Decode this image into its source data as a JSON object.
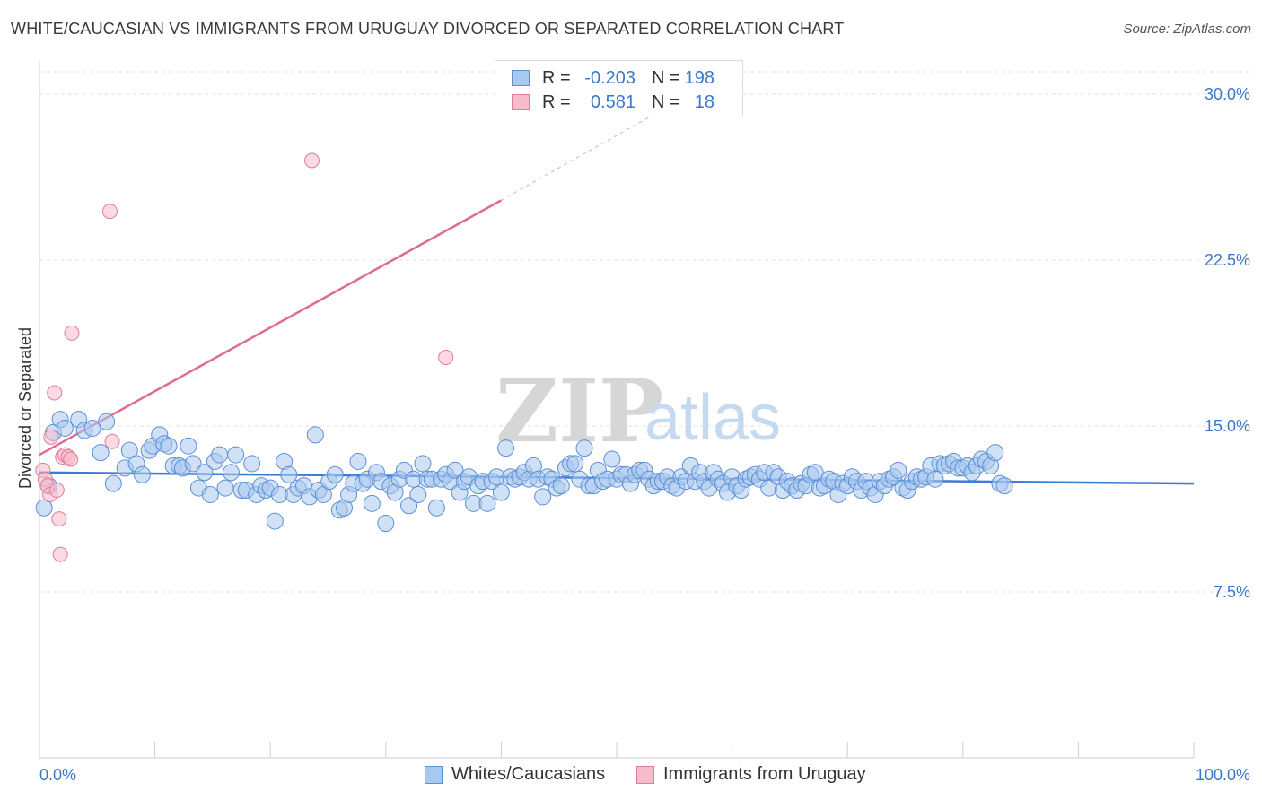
{
  "header": {
    "title": "WHITE/CAUCASIAN VS IMMIGRANTS FROM URUGUAY DIVORCED OR SEPARATED CORRELATION CHART",
    "source": "Source: ZipAtlas.com"
  },
  "watermark": {
    "zip": "ZIP",
    "atlas": "atlas"
  },
  "legend": {
    "rows": [
      {
        "r_label": "R =",
        "r_value": "-0.203",
        "n_label": "N =",
        "n_value": "198",
        "color": "#a9c8ee",
        "border": "#5b8fd6"
      },
      {
        "r_label": "R =",
        "r_value": "0.581",
        "n_label": "N =",
        "n_value": "18",
        "color": "#f7bccb",
        "border": "#e07d9a"
      }
    ]
  },
  "bottom_legend": {
    "items": [
      {
        "label": "Whites/Caucasians",
        "color": "#a9c8ee",
        "border": "#5b8fd6"
      },
      {
        "label": "Immigrants from Uruguay",
        "color": "#f7bccb",
        "border": "#e07d9a"
      }
    ]
  },
  "chart_data": {
    "type": "scatter",
    "title": "WHITE/CAUCASIAN VS IMMIGRANTS FROM URUGUAY DIVORCED OR SEPARATED CORRELATION CHART",
    "xlabel": "",
    "ylabel": "Divorced or Separated",
    "xlim": [
      0,
      100
    ],
    "ylim": [
      0,
      31.5
    ],
    "x_tick_labels": [
      "0.0%",
      "100.0%"
    ],
    "y_ticks": [
      7.5,
      15.0,
      22.5,
      30.0
    ],
    "y_tick_labels": [
      "7.5%",
      "15.0%",
      "22.5%",
      "30.0%"
    ],
    "grid": true,
    "series": [
      {
        "name": "Whites/Caucasians",
        "color": "#a9c8ee",
        "border": "#5b8fd6",
        "trend": {
          "x0": 0,
          "y0": 12.9,
          "x1": 100,
          "y1": 12.4,
          "color": "#3a7bd5"
        },
        "points": [
          [
            0.4,
            11.3
          ],
          [
            0.8,
            12.3
          ],
          [
            1.2,
            14.7
          ],
          [
            1.8,
            15.3
          ],
          [
            2.2,
            14.9
          ],
          [
            3.4,
            15.3
          ],
          [
            3.9,
            14.8
          ],
          [
            4.6,
            14.9
          ],
          [
            5.3,
            13.8
          ],
          [
            5.8,
            15.2
          ],
          [
            6.4,
            12.4
          ],
          [
            7.4,
            13.1
          ],
          [
            7.8,
            13.9
          ],
          [
            8.4,
            13.3
          ],
          [
            8.9,
            12.8
          ],
          [
            9.5,
            13.9
          ],
          [
            9.8,
            14.1
          ],
          [
            10.4,
            14.6
          ],
          [
            10.8,
            14.2
          ],
          [
            11.2,
            14.1
          ],
          [
            11.6,
            13.2
          ],
          [
            12.1,
            13.2
          ],
          [
            12.4,
            13.1
          ],
          [
            12.9,
            14.1
          ],
          [
            13.3,
            13.3
          ],
          [
            13.8,
            12.2
          ],
          [
            14.3,
            12.9
          ],
          [
            14.8,
            11.9
          ],
          [
            15.2,
            13.4
          ],
          [
            15.6,
            13.7
          ],
          [
            16.1,
            12.2
          ],
          [
            16.6,
            12.9
          ],
          [
            17.0,
            13.7
          ],
          [
            17.5,
            12.1
          ],
          [
            17.9,
            12.1
          ],
          [
            18.4,
            13.3
          ],
          [
            18.8,
            11.9
          ],
          [
            19.2,
            12.3
          ],
          [
            19.6,
            12.1
          ],
          [
            20.0,
            12.2
          ],
          [
            20.4,
            10.7
          ],
          [
            20.8,
            11.9
          ],
          [
            21.2,
            13.4
          ],
          [
            21.6,
            12.8
          ],
          [
            22.0,
            11.9
          ],
          [
            22.4,
            12.2
          ],
          [
            22.9,
            12.3
          ],
          [
            23.4,
            11.8
          ],
          [
            23.9,
            14.6
          ],
          [
            24.2,
            12.1
          ],
          [
            24.6,
            11.9
          ],
          [
            25.1,
            12.5
          ],
          [
            25.6,
            12.8
          ],
          [
            26.0,
            11.2
          ],
          [
            26.4,
            11.3
          ],
          [
            26.8,
            11.9
          ],
          [
            27.2,
            12.4
          ],
          [
            27.6,
            13.4
          ],
          [
            28.0,
            12.4
          ],
          [
            28.4,
            12.6
          ],
          [
            28.8,
            11.5
          ],
          [
            29.2,
            12.9
          ],
          [
            29.6,
            12.5
          ],
          [
            30.0,
            10.6
          ],
          [
            30.4,
            12.3
          ],
          [
            30.8,
            12.0
          ],
          [
            31.2,
            12.6
          ],
          [
            31.6,
            13.0
          ],
          [
            32.0,
            11.4
          ],
          [
            32.4,
            12.6
          ],
          [
            32.8,
            11.9
          ],
          [
            33.2,
            13.3
          ],
          [
            33.6,
            12.6
          ],
          [
            34.0,
            12.6
          ],
          [
            34.4,
            11.3
          ],
          [
            34.8,
            12.6
          ],
          [
            35.2,
            12.8
          ],
          [
            35.6,
            12.5
          ],
          [
            36.0,
            13.0
          ],
          [
            36.4,
            12.0
          ],
          [
            36.8,
            12.5
          ],
          [
            37.2,
            12.7
          ],
          [
            37.6,
            11.5
          ],
          [
            38.0,
            12.3
          ],
          [
            38.4,
            12.5
          ],
          [
            38.8,
            11.5
          ],
          [
            39.2,
            12.5
          ],
          [
            39.6,
            12.7
          ],
          [
            40.0,
            12.0
          ],
          [
            40.4,
            14.0
          ],
          [
            40.8,
            12.7
          ],
          [
            41.2,
            12.6
          ],
          [
            41.6,
            12.7
          ],
          [
            42.0,
            12.9
          ],
          [
            42.4,
            12.6
          ],
          [
            42.8,
            13.2
          ],
          [
            43.2,
            12.6
          ],
          [
            43.6,
            11.8
          ],
          [
            44.0,
            12.7
          ],
          [
            44.4,
            12.6
          ],
          [
            44.8,
            12.2
          ],
          [
            45.2,
            12.3
          ],
          [
            45.6,
            13.1
          ],
          [
            46.0,
            13.3
          ],
          [
            46.4,
            13.3
          ],
          [
            46.8,
            12.6
          ],
          [
            47.2,
            14.0
          ],
          [
            47.6,
            12.3
          ],
          [
            48.0,
            12.3
          ],
          [
            48.4,
            13.0
          ],
          [
            48.8,
            12.5
          ],
          [
            49.2,
            12.6
          ],
          [
            49.6,
            13.5
          ],
          [
            50.0,
            12.6
          ],
          [
            50.4,
            12.8
          ],
          [
            50.8,
            12.8
          ],
          [
            51.2,
            12.4
          ],
          [
            51.6,
            12.8
          ],
          [
            52.0,
            13.0
          ],
          [
            52.4,
            13.0
          ],
          [
            52.8,
            12.6
          ],
          [
            53.2,
            12.3
          ],
          [
            53.6,
            12.5
          ],
          [
            54.0,
            12.5
          ],
          [
            54.4,
            12.7
          ],
          [
            54.8,
            12.3
          ],
          [
            55.2,
            12.2
          ],
          [
            55.6,
            12.7
          ],
          [
            56.0,
            12.5
          ],
          [
            56.4,
            13.2
          ],
          [
            56.8,
            12.5
          ],
          [
            57.2,
            12.9
          ],
          [
            57.6,
            12.5
          ],
          [
            58.0,
            12.2
          ],
          [
            58.4,
            12.9
          ],
          [
            58.8,
            12.6
          ],
          [
            59.2,
            12.4
          ],
          [
            59.6,
            12.0
          ],
          [
            60.0,
            12.7
          ],
          [
            60.4,
            12.3
          ],
          [
            60.8,
            12.1
          ],
          [
            61.2,
            12.6
          ],
          [
            61.6,
            12.7
          ],
          [
            62.0,
            12.8
          ],
          [
            62.4,
            12.6
          ],
          [
            62.8,
            12.9
          ],
          [
            63.2,
            12.2
          ],
          [
            63.6,
            12.9
          ],
          [
            64.0,
            12.7
          ],
          [
            64.4,
            12.1
          ],
          [
            64.8,
            12.5
          ],
          [
            65.2,
            12.3
          ],
          [
            65.6,
            12.1
          ],
          [
            66.0,
            12.4
          ],
          [
            66.4,
            12.3
          ],
          [
            66.8,
            12.8
          ],
          [
            67.2,
            12.9
          ],
          [
            67.6,
            12.2
          ],
          [
            68.0,
            12.3
          ],
          [
            68.4,
            12.6
          ],
          [
            68.8,
            12.5
          ],
          [
            69.2,
            11.9
          ],
          [
            69.6,
            12.4
          ],
          [
            70.0,
            12.3
          ],
          [
            70.4,
            12.7
          ],
          [
            70.8,
            12.5
          ],
          [
            71.2,
            12.1
          ],
          [
            71.6,
            12.5
          ],
          [
            72.0,
            12.2
          ],
          [
            72.4,
            11.9
          ],
          [
            72.8,
            12.5
          ],
          [
            73.2,
            12.3
          ],
          [
            73.6,
            12.6
          ],
          [
            74.0,
            12.7
          ],
          [
            74.4,
            13.0
          ],
          [
            74.8,
            12.2
          ],
          [
            75.2,
            12.1
          ],
          [
            75.6,
            12.5
          ],
          [
            76.0,
            12.7
          ],
          [
            76.4,
            12.6
          ],
          [
            76.8,
            12.7
          ],
          [
            77.2,
            13.2
          ],
          [
            77.6,
            12.6
          ],
          [
            78.0,
            13.3
          ],
          [
            78.4,
            13.2
          ],
          [
            78.8,
            13.3
          ],
          [
            79.2,
            13.4
          ],
          [
            79.6,
            13.1
          ],
          [
            80.0,
            13.1
          ],
          [
            80.4,
            13.2
          ],
          [
            80.8,
            12.9
          ],
          [
            81.2,
            13.2
          ],
          [
            81.6,
            13.5
          ],
          [
            82.0,
            13.4
          ],
          [
            82.4,
            13.2
          ],
          [
            82.8,
            13.8
          ],
          [
            83.2,
            12.4
          ],
          [
            83.6,
            12.3
          ]
        ]
      },
      {
        "name": "Immigrants from Uruguay",
        "color": "#f7bccb",
        "border": "#e07d9a",
        "trend": {
          "x0": 0,
          "y0": 13.7,
          "x1": 40,
          "y1": 25.2,
          "dash_x1": 55,
          "dash_y1": 29.6,
          "color": "#e06b92"
        },
        "points": [
          [
            0.3,
            13.0
          ],
          [
            0.5,
            12.6
          ],
          [
            0.7,
            12.3
          ],
          [
            0.9,
            11.9
          ],
          [
            1.0,
            14.5
          ],
          [
            1.3,
            16.5
          ],
          [
            1.5,
            12.1
          ],
          [
            1.7,
            10.8
          ],
          [
            1.8,
            9.2
          ],
          [
            2.0,
            13.6
          ],
          [
            2.2,
            13.7
          ],
          [
            2.5,
            13.6
          ],
          [
            2.7,
            13.5
          ],
          [
            2.8,
            19.2
          ],
          [
            6.1,
            24.7
          ],
          [
            6.3,
            14.3
          ],
          [
            23.6,
            27.0
          ],
          [
            35.2,
            18.1
          ]
        ]
      }
    ]
  }
}
